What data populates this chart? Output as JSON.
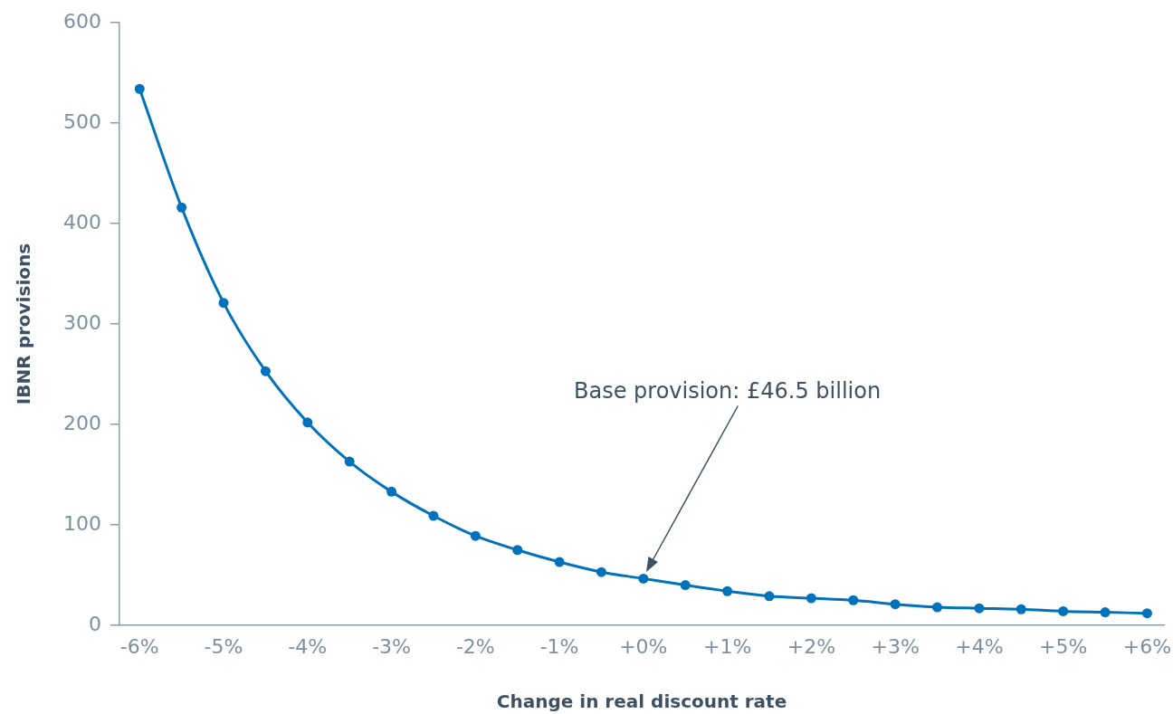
{
  "chart_data": {
    "type": "line",
    "xlabel": "Change in real discount rate",
    "ylabel": "IBNR provisions",
    "x": [
      -6,
      -5.5,
      -5,
      -4.5,
      -4,
      -3.5,
      -3,
      -2.5,
      -2,
      -1.5,
      -1,
      -0.5,
      0,
      0.5,
      1,
      1.5,
      2,
      2.5,
      3,
      3.5,
      4,
      4.5,
      5,
      5.5,
      6
    ],
    "values": [
      534,
      416,
      321,
      253,
      202,
      163,
      133,
      109,
      89,
      75,
      63,
      53,
      46.5,
      40,
      34,
      29,
      27,
      25,
      21,
      18,
      17,
      16,
      14,
      13,
      12
    ],
    "color": "#0072bc",
    "marker": "circle",
    "xlim": [
      -6.24,
      6.2
    ],
    "xticks": [
      {
        "value": -6,
        "label": "-6%"
      },
      {
        "value": -5,
        "label": "-5%"
      },
      {
        "value": -4,
        "label": "-4%"
      },
      {
        "value": -3,
        "label": "-3%"
      },
      {
        "value": -2,
        "label": "-2%"
      },
      {
        "value": -1,
        "label": "-1%"
      },
      {
        "value": 0,
        "label": "+0%"
      },
      {
        "value": 1,
        "label": "+1%"
      },
      {
        "value": 2,
        "label": "+2%"
      },
      {
        "value": 3,
        "label": "+3%"
      },
      {
        "value": 4,
        "label": "+4%"
      },
      {
        "value": 5,
        "label": "+5%"
      },
      {
        "value": 6,
        "label": "+6%"
      }
    ],
    "ylim": [
      0,
      600
    ],
    "yticks": [
      0,
      100,
      200,
      300,
      400,
      500,
      600
    ],
    "annotations": [
      "Base provision: £46.5 billion"
    ]
  }
}
